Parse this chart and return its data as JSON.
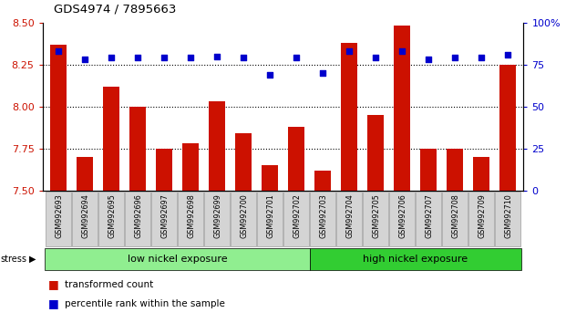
{
  "title": "GDS4974 / 7895663",
  "samples": [
    "GSM992693",
    "GSM992694",
    "GSM992695",
    "GSM992696",
    "GSM992697",
    "GSM992698",
    "GSM992699",
    "GSM992700",
    "GSM992701",
    "GSM992702",
    "GSM992703",
    "GSM992704",
    "GSM992705",
    "GSM992706",
    "GSM992707",
    "GSM992708",
    "GSM992709",
    "GSM992710"
  ],
  "transformed_count": [
    8.37,
    7.7,
    8.12,
    8.0,
    7.75,
    7.78,
    8.03,
    7.84,
    7.65,
    7.88,
    7.62,
    8.38,
    7.95,
    8.48,
    7.75,
    7.75,
    7.7,
    8.25
  ],
  "percentile_rank": [
    83,
    78,
    79,
    79,
    79,
    79,
    80,
    79,
    69,
    79,
    70,
    83,
    79,
    83,
    78,
    79,
    79,
    81
  ],
  "bar_color": "#cc1100",
  "dot_color": "#0000cc",
  "ylim_left": [
    7.5,
    8.5
  ],
  "ylim_right": [
    0,
    100
  ],
  "yticks_left": [
    7.5,
    7.75,
    8.0,
    8.25,
    8.5
  ],
  "yticks_right": [
    0,
    25,
    50,
    75,
    100
  ],
  "ytick_labels_right": [
    "0",
    "25",
    "50",
    "75",
    "100%"
  ],
  "hlines": [
    7.75,
    8.0,
    8.25
  ],
  "group_labels": [
    "low nickel exposure",
    "high nickel exposure"
  ],
  "group_split": 10,
  "group_colors": [
    "#90ee90",
    "#32cd32"
  ],
  "stress_label": "stress",
  "legend_labels": [
    "transformed count",
    "percentile rank within the sample"
  ],
  "legend_colors": [
    "#cc1100",
    "#0000cc"
  ],
  "bg_color": "#ffffff"
}
